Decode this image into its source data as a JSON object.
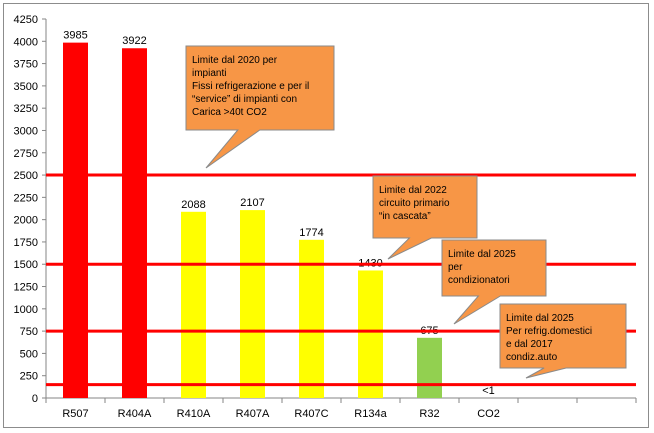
{
  "chart_data": {
    "type": "bar",
    "title": "",
    "xlabel": "",
    "ylabel": "",
    "ylim": [
      0,
      4250
    ],
    "y_ticks": [
      "0",
      "250",
      "500",
      "750",
      "1000",
      "1250",
      "1500",
      "1750",
      "2000",
      "2250",
      "2500",
      "2750",
      "3000",
      "3250",
      "3500",
      "3750",
      "4000",
      "4250"
    ],
    "grid": false,
    "categories": [
      "R507",
      "R404A",
      "R410A",
      "R407A",
      "R407C",
      "R134a",
      "R32",
      "CO2"
    ],
    "values": [
      3985,
      3922,
      2088,
      2107,
      1774,
      1430,
      675,
      1
    ],
    "value_labels": [
      "3985",
      "3922",
      "2088",
      "2107",
      "1774",
      "1430",
      "675",
      "<1"
    ],
    "bar_colors": [
      "#ff0000",
      "#ff0000",
      "#ffff00",
      "#ffff00",
      "#ffff00",
      "#ffff00",
      "#92d050",
      "#ffffff"
    ],
    "reference_lines": [
      {
        "value": 2500,
        "color": "#ff0000"
      },
      {
        "value": 1500,
        "color": "#ff0000"
      },
      {
        "value": 750,
        "color": "#ff0000"
      },
      {
        "value": 150,
        "color": "#ff0000"
      }
    ],
    "annotations": [
      {
        "text": "Limite dal 2020 per\nimpianti\nFissi refrigerazione e per il\n“service” di impianti con\nCarica >40t CO2",
        "color": "#f79646"
      },
      {
        "text": "Limite dal 2022\ncircuito primario\n“in cascata”",
        "color": "#f79646"
      },
      {
        "text": "Limite dal 2025\nper\ncondizionatori",
        "color": "#f79646"
      },
      {
        "text": "Limite dal 2025\nPer refrig.domestici\n e dal 2017\ncondiz.auto",
        "color": "#f79646"
      }
    ]
  }
}
